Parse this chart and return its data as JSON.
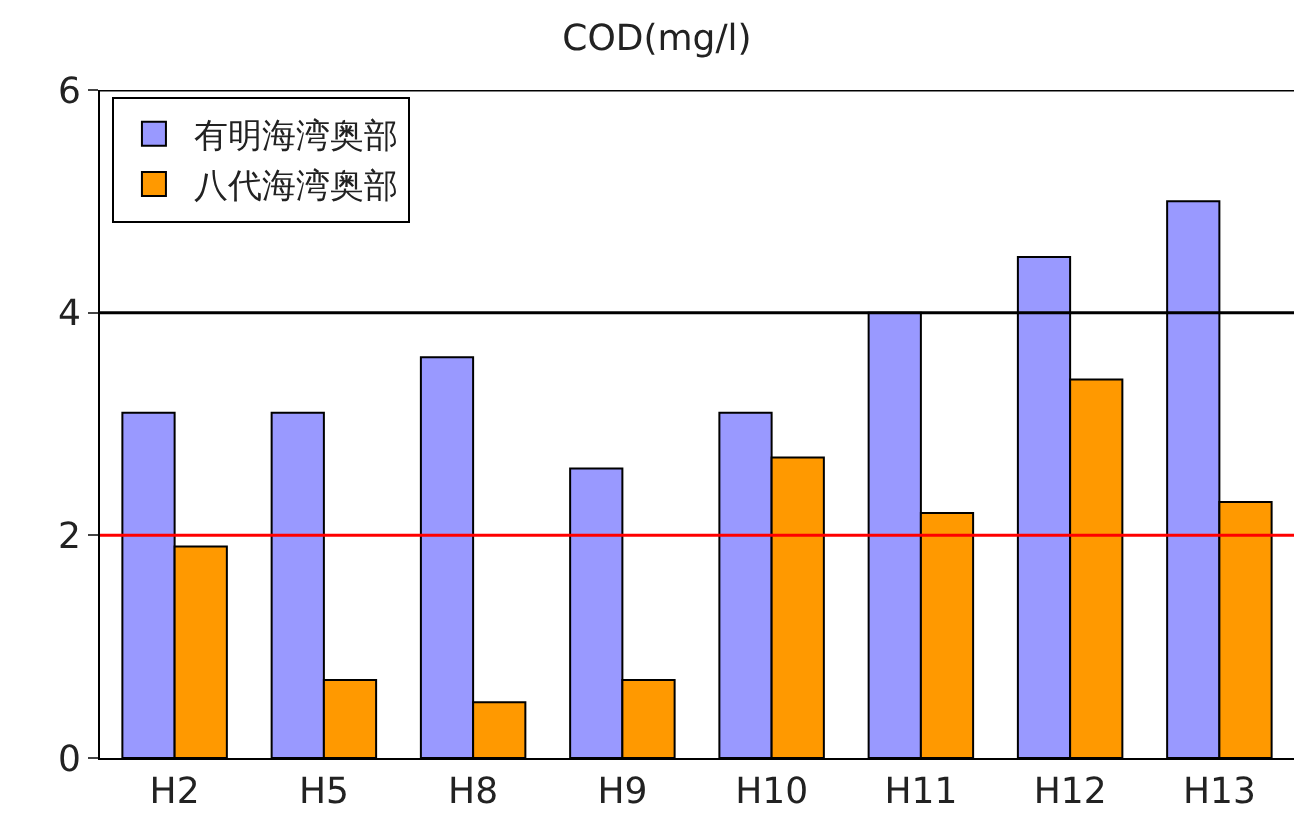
{
  "chart_data": {
    "type": "bar",
    "title": "COD(mg/l)",
    "categories": [
      "H2",
      "H5",
      "H8",
      "H9",
      "H10",
      "H11",
      "H12",
      "H13"
    ],
    "series": [
      {
        "name": "有明海湾奥部",
        "color": "#9999ff",
        "values": [
          3.1,
          3.1,
          3.6,
          2.6,
          3.1,
          4.0,
          4.5,
          5.0
        ]
      },
      {
        "name": "八代海湾奥部",
        "color": "#ff9900",
        "values": [
          1.9,
          0.7,
          0.5,
          0.7,
          2.7,
          2.2,
          3.4,
          2.3
        ]
      }
    ],
    "ylim": [
      0,
      6
    ],
    "yticks": [
      0,
      2,
      4,
      6
    ],
    "legend": "top left",
    "ref_lines": [
      {
        "axis": "y",
        "value": 2,
        "color": "#ff0000"
      },
      {
        "axis": "y",
        "value": 4,
        "color": "#000000"
      },
      {
        "axis": "y",
        "value": 6,
        "color": "#000000"
      }
    ]
  }
}
